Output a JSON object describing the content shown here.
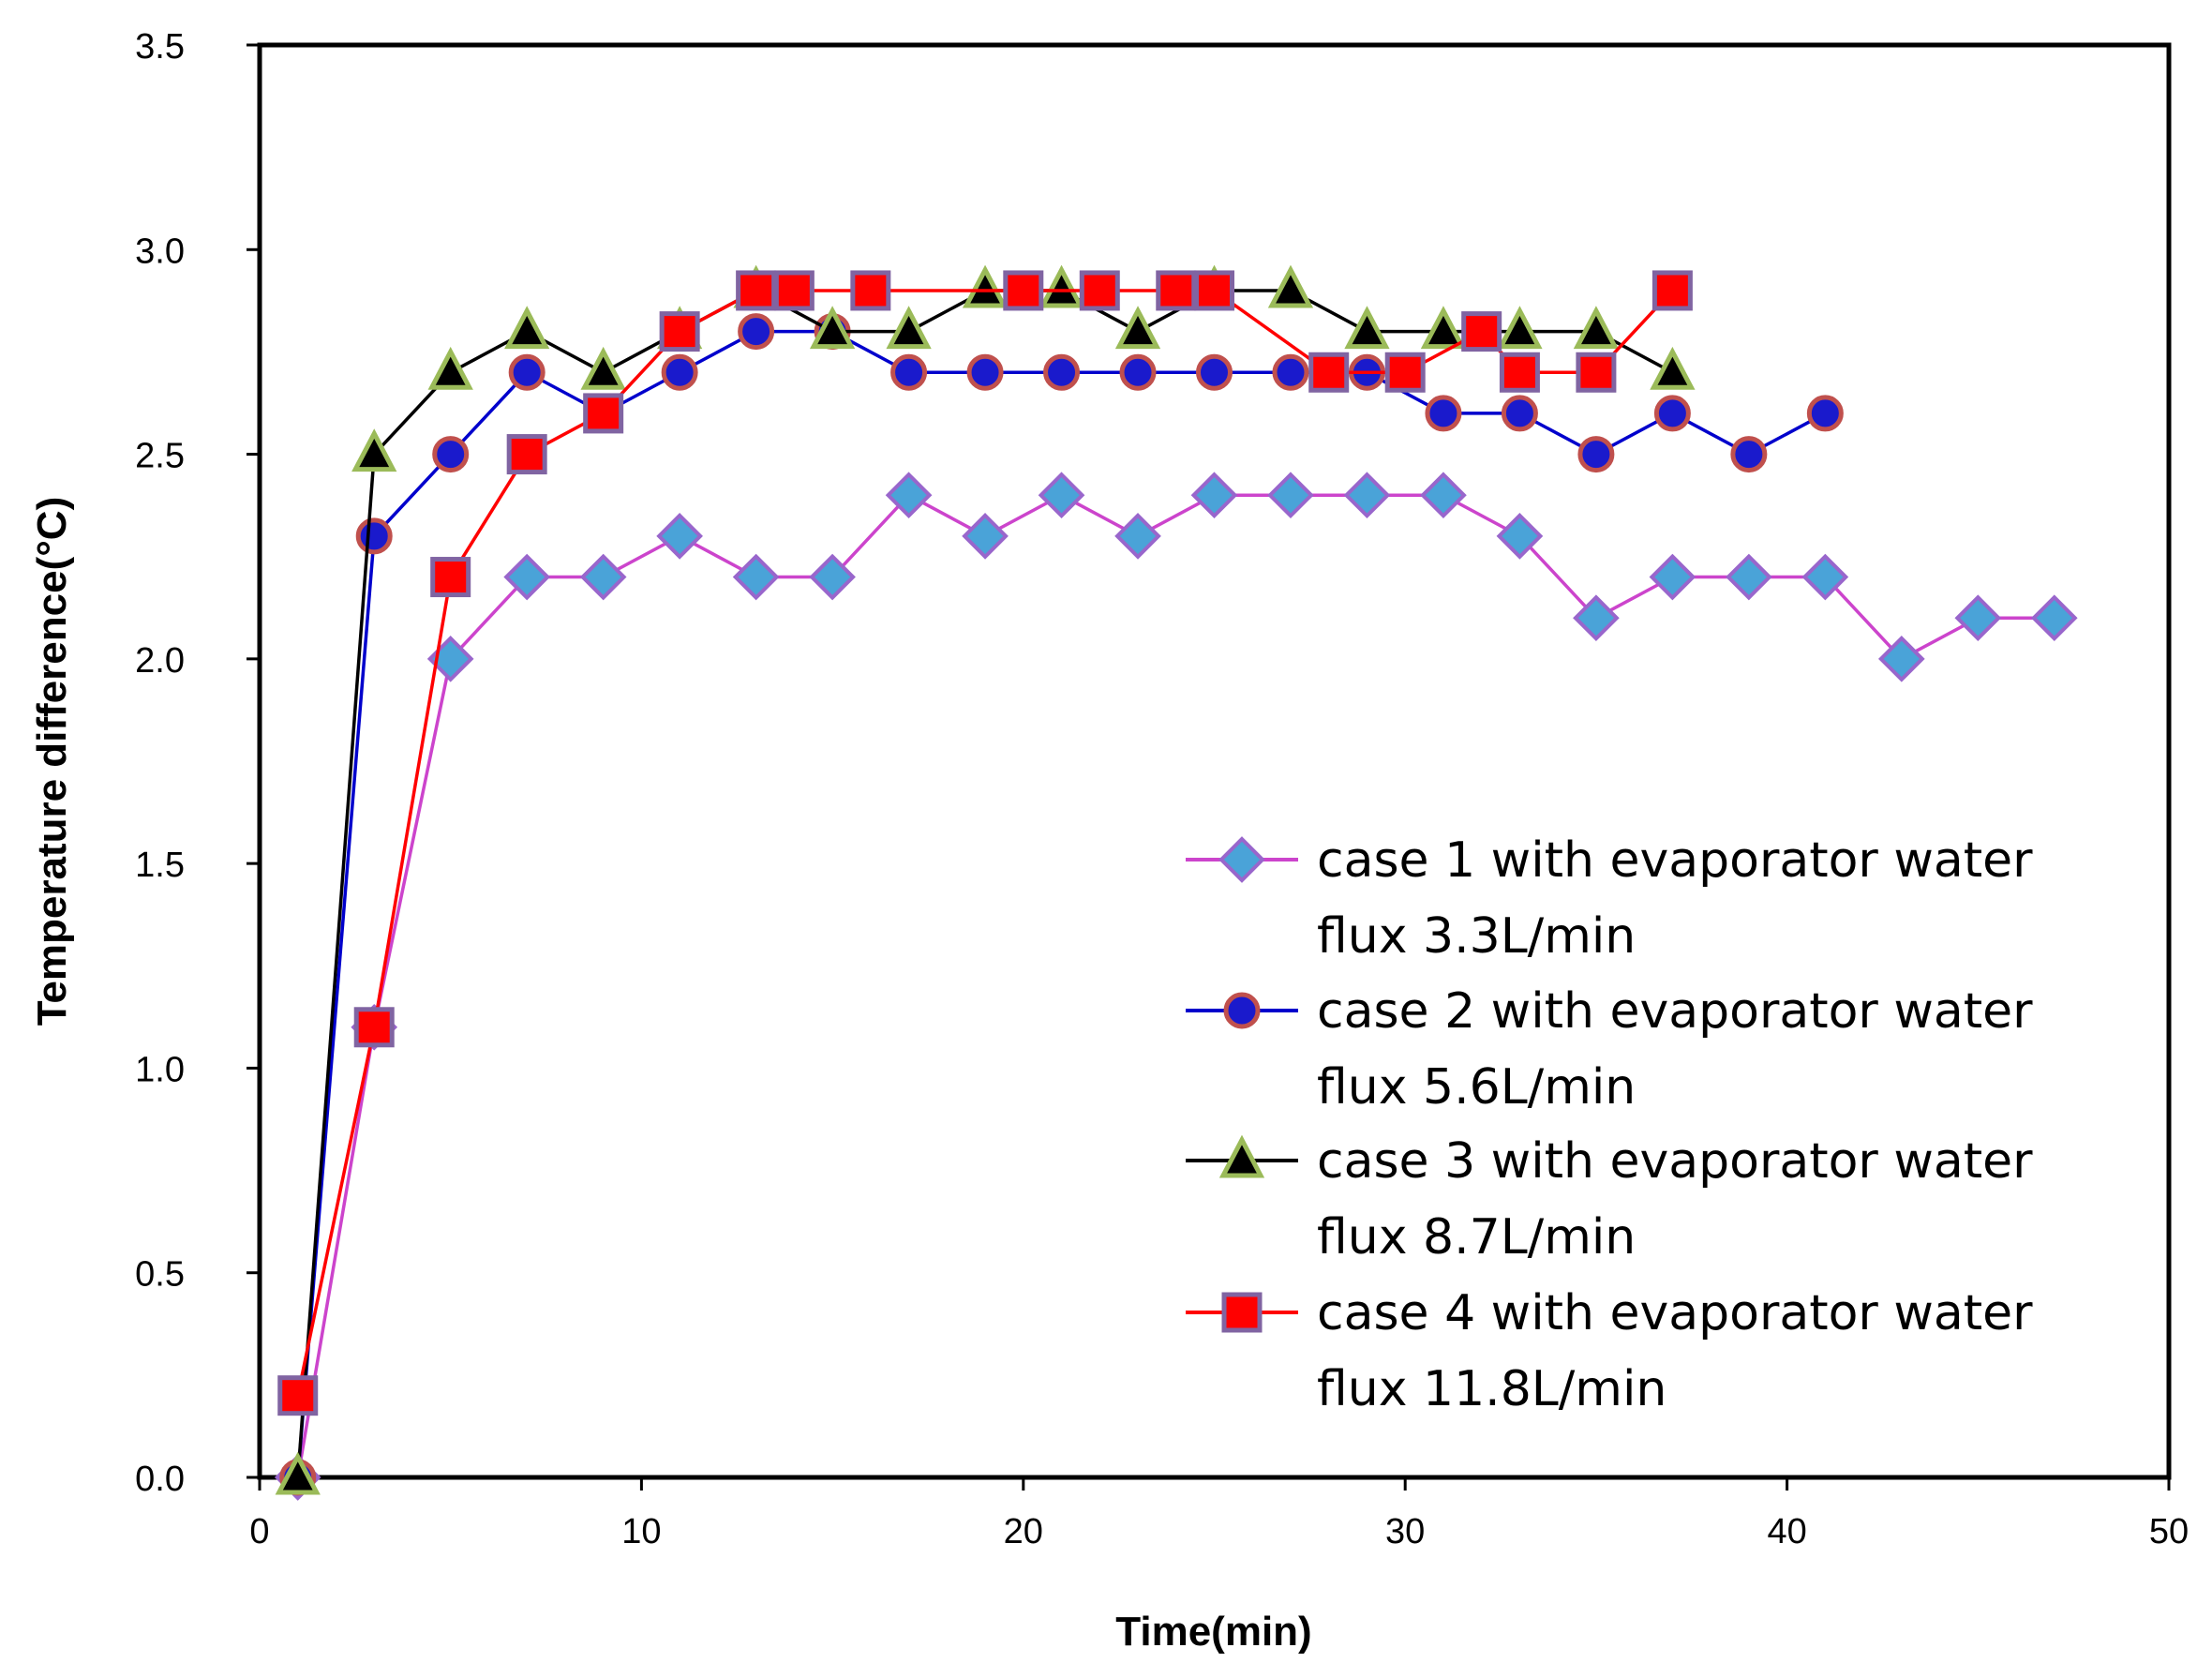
{
  "chart_data": {
    "type": "line",
    "title": "",
    "xlabel": "Time(min)",
    "ylabel": "Temperature difference(°C)",
    "xlim": [
      0,
      50
    ],
    "ylim": [
      0,
      3.5
    ],
    "xticks": [
      "0",
      "10",
      "20",
      "30",
      "40",
      "50"
    ],
    "yticks": [
      "0.0",
      "0.5",
      "1.0",
      "1.5",
      "2.0",
      "2.5",
      "3.0",
      "3.5"
    ],
    "grid": false,
    "legend_position": "lower-right",
    "series": [
      {
        "name": "case 1 with evaporator water",
        "name_line2": "flux 3.3L/min",
        "marker": "diamond",
        "line_color": "#cc44cc",
        "marker_fill": "#4aa3d8",
        "marker_stroke": "#9966cc",
        "x": [
          1,
          3,
          5,
          7,
          9,
          11,
          13,
          15,
          17,
          19,
          21,
          23,
          25,
          27,
          29,
          31,
          33,
          35,
          37,
          39,
          41,
          43,
          45,
          47
        ],
        "y": [
          0,
          1.1,
          2.0,
          2.2,
          2.2,
          2.3,
          2.2,
          2.2,
          2.4,
          2.3,
          2.4,
          2.3,
          2.4,
          2.4,
          2.4,
          2.4,
          2.3,
          2.1,
          2.2,
          2.2,
          2.2,
          2.0,
          2.1,
          2.1
        ]
      },
      {
        "name": "case 2 with evaporator water",
        "name_line2": "flux 5.6L/min",
        "marker": "circle",
        "line_color": "#0000cc",
        "marker_fill": "#1a1acc",
        "marker_stroke": "#c0504d",
        "x": [
          1,
          3,
          5,
          7,
          9,
          11,
          13,
          15,
          17,
          19,
          21,
          23,
          25,
          27,
          29,
          31,
          33,
          35,
          37,
          39,
          41
        ],
        "y": [
          0,
          2.3,
          2.5,
          2.7,
          2.6,
          2.7,
          2.8,
          2.8,
          2.7,
          2.7,
          2.7,
          2.7,
          2.7,
          2.7,
          2.7,
          2.6,
          2.6,
          2.5,
          2.6,
          2.5,
          2.6
        ]
      },
      {
        "name": "case 3 with evaporator water",
        "name_line2": "flux 8.7L/min",
        "marker": "triangle",
        "line_color": "#000000",
        "marker_fill": "#000000",
        "marker_stroke": "#9bbb59",
        "x": [
          1,
          3,
          5,
          7,
          9,
          11,
          13,
          15,
          17,
          19,
          21,
          23,
          25,
          27,
          29,
          31,
          33,
          35,
          37
        ],
        "y": [
          0,
          2.5,
          2.7,
          2.8,
          2.7,
          2.8,
          2.9,
          2.8,
          2.8,
          2.9,
          2.9,
          2.8,
          2.9,
          2.9,
          2.8,
          2.8,
          2.8,
          2.8,
          2.7
        ]
      },
      {
        "name": "case 4 with evaporator water",
        "name_line2": "flux 11.8L/min",
        "marker": "square",
        "line_color": "#ff0000",
        "marker_fill": "#ff0000",
        "marker_stroke": "#8064a2",
        "x": [
          1,
          3,
          5,
          7,
          9,
          11,
          13,
          14,
          16,
          20,
          22,
          24,
          25,
          28,
          30,
          32,
          33,
          35,
          37
        ],
        "y": [
          0.2,
          1.1,
          2.2,
          2.5,
          2.6,
          2.8,
          2.9,
          2.9,
          2.9,
          2.9,
          2.9,
          2.9,
          2.9,
          2.7,
          2.7,
          2.8,
          2.7,
          2.7,
          2.9
        ]
      }
    ]
  }
}
